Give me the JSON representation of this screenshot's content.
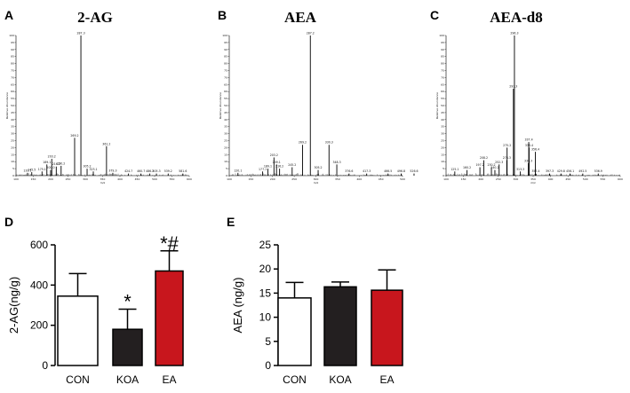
{
  "panels": {
    "A": "A",
    "B": "B",
    "C": "C",
    "D": "D",
    "E": "E"
  },
  "spectra": [
    {
      "letter": "A",
      "title": "2-AG",
      "ylabel": "Relative Abundance",
      "xlabel": "m/z",
      "yticks": [
        "0",
        "5",
        "10",
        "15",
        "20",
        "25",
        "30",
        "35",
        "40",
        "45",
        "50",
        "55",
        "60",
        "65",
        "70",
        "75",
        "80",
        "85",
        "90",
        "95",
        "100"
      ],
      "xticks": [
        "100",
        "150",
        "200",
        "250",
        "300",
        "350",
        "400",
        "450",
        "500",
        "550",
        "600"
      ],
      "xlim": [
        100,
        600
      ],
      "ylim": [
        0,
        100
      ],
      "peaks": [
        {
          "mz": 133.1,
          "rel": 2,
          "label": "133.1"
        },
        {
          "mz": 145.5,
          "rel": 2.5,
          "label": "145.5"
        },
        {
          "mz": 175.1,
          "rel": 3,
          "label": "175.1"
        },
        {
          "mz": 189.1,
          "rel": 8,
          "label": "189.1"
        },
        {
          "mz": 200,
          "rel": 4,
          "label": "200.0"
        },
        {
          "mz": 203.2,
          "rel": 12,
          "label": "203.2"
        },
        {
          "mz": 216.2,
          "rel": 6.5,
          "label": "216.2"
        },
        {
          "mz": 230.2,
          "rel": 7,
          "label": "230.2"
        },
        {
          "mz": 269.2,
          "rel": 27,
          "label": "269.2"
        },
        {
          "mz": 287.3,
          "rel": 100,
          "label": "287.3"
        },
        {
          "mz": 305.2,
          "rel": 5,
          "label": "305.2"
        },
        {
          "mz": 323.1,
          "rel": 3,
          "label": "323.1"
        },
        {
          "mz": 361.2,
          "rel": 21,
          "label": "361.2"
        },
        {
          "mz": 379.3,
          "rel": 2,
          "label": "379.3"
        },
        {
          "mz": 424.7,
          "rel": 1.5,
          "label": "424.7"
        },
        {
          "mz": 460.7,
          "rel": 1.5,
          "label": "460.7"
        },
        {
          "mz": 486.2,
          "rel": 1.5,
          "label": "486.2"
        },
        {
          "mz": 505.3,
          "rel": 1.5,
          "label": "505.3"
        },
        {
          "mz": 539.2,
          "rel": 1.5,
          "label": "539.2"
        },
        {
          "mz": 581.6,
          "rel": 1.5,
          "label": "581.6"
        }
      ]
    },
    {
      "letter": "B",
      "title": "AEA",
      "ylabel": "Relative Abundance",
      "xlabel": "m/z",
      "yticks": [
        "0",
        "5",
        "10",
        "15",
        "20",
        "25",
        "30",
        "35",
        "40",
        "45",
        "50",
        "55",
        "60",
        "65",
        "70",
        "75",
        "80",
        "85",
        "90",
        "95",
        "100"
      ],
      "xticks": [
        "100",
        "150",
        "200",
        "250",
        "300",
        "350",
        "400",
        "450",
        "500"
      ],
      "xlim": [
        100,
        500
      ],
      "ylim": [
        0,
        100
      ],
      "peaks": [
        {
          "mz": 120.1,
          "rel": 2,
          "label": "120.1"
        },
        {
          "mz": 177.1,
          "rel": 3,
          "label": "177.1"
        },
        {
          "mz": 189.1,
          "rel": 5,
          "label": "189.1"
        },
        {
          "mz": 203.2,
          "rel": 13,
          "label": "203.2"
        },
        {
          "mz": 209.1,
          "rel": 8,
          "label": "209.1"
        },
        {
          "mz": 216.2,
          "rel": 5,
          "label": "216.2"
        },
        {
          "mz": 245.2,
          "rel": 6,
          "label": "245.2"
        },
        {
          "mz": 269.2,
          "rel": 22,
          "label": "269.2"
        },
        {
          "mz": 287.2,
          "rel": 100,
          "label": "287.2"
        },
        {
          "mz": 305.2,
          "rel": 4,
          "label": "305.2"
        },
        {
          "mz": 330.3,
          "rel": 22,
          "label": "330.3"
        },
        {
          "mz": 348.3,
          "rel": 8,
          "label": "348.3"
        },
        {
          "mz": 376.6,
          "rel": 1.5,
          "label": "376.6"
        },
        {
          "mz": 417.3,
          "rel": 1.5,
          "label": "417.3"
        },
        {
          "mz": 466.5,
          "rel": 1.5,
          "label": "466.5"
        },
        {
          "mz": 496.8,
          "rel": 1.5,
          "label": "496.8"
        },
        {
          "mz": 526.6,
          "rel": 1.5,
          "label": "526.6"
        }
      ]
    },
    {
      "letter": "C",
      "title": "AEA-d8",
      "ylabel": "Relative Abundance",
      "xlabel": "m/z",
      "yticks": [
        "0",
        "5",
        "10",
        "15",
        "20",
        "25",
        "30",
        "35",
        "40",
        "45",
        "50",
        "55",
        "60",
        "65",
        "70",
        "75",
        "80",
        "85",
        "90",
        "95",
        "100"
      ],
      "xticks": [
        "100",
        "150",
        "200",
        "250",
        "300",
        "350",
        "400",
        "450",
        "500",
        "550",
        "600"
      ],
      "xlim": [
        100,
        600
      ],
      "ylim": [
        0,
        100
      ],
      "peaks": [
        {
          "mz": 125.1,
          "rel": 3,
          "label": "125.1"
        },
        {
          "mz": 160.2,
          "rel": 4,
          "label": "160.2"
        },
        {
          "mz": 197.2,
          "rel": 6,
          "label": "197.2"
        },
        {
          "mz": 208.2,
          "rel": 11,
          "label": "208.2"
        },
        {
          "mz": 230.2,
          "rel": 6,
          "label": "230.2"
        },
        {
          "mz": 240.2,
          "rel": 4,
          "label": "240.2"
        },
        {
          "mz": 252.3,
          "rel": 8,
          "label": "252.3"
        },
        {
          "mz": 274.3,
          "rel": 11,
          "label": "274.3"
        },
        {
          "mz": 275.2,
          "rel": 20,
          "label": "275.2"
        },
        {
          "mz": 293.3,
          "rel": 62,
          "label": "293.3"
        },
        {
          "mz": 296.3,
          "rel": 100,
          "label": "296.3"
        },
        {
          "mz": 313.3,
          "rel": 3,
          "label": "313.3"
        },
        {
          "mz": 336.3,
          "rel": 9,
          "label": "336.3"
        },
        {
          "mz": 337.4,
          "rel": 24,
          "label": "337.4"
        },
        {
          "mz": 338.4,
          "rel": 20,
          "label": "338.4"
        },
        {
          "mz": 356.4,
          "rel": 17,
          "label": "356.4"
        },
        {
          "mz": 357.4,
          "rel": 1.5,
          "label": "357.4"
        },
        {
          "mz": 397.3,
          "rel": 1.5,
          "label": "397.3"
        },
        {
          "mz": 429.8,
          "rel": 1.5,
          "label": "429.8"
        },
        {
          "mz": 456.1,
          "rel": 1.5,
          "label": "456.1"
        },
        {
          "mz": 492.5,
          "rel": 1.5,
          "label": "492.5"
        },
        {
          "mz": 536.9,
          "rel": 1.5,
          "label": "536.9"
        }
      ]
    }
  ],
  "chart_data": [
    {
      "type": "bar",
      "panel": "D",
      "categories": [
        "CON",
        "KOA",
        "EA"
      ],
      "values": [
        345,
        180,
        470
      ],
      "errors": [
        112,
        100,
        100
      ],
      "colors": [
        "#ffffff",
        "#231f20",
        "#c8161d"
      ],
      "annotations": [
        "",
        "*",
        "*#"
      ],
      "title": "",
      "xlabel": "",
      "ylabel": "2-AG(ng/g)",
      "ylim": [
        0,
        600
      ],
      "yticks": [
        "0",
        "200",
        "400",
        "600"
      ],
      "tick_values": [
        0,
        200,
        400,
        600
      ]
    },
    {
      "type": "bar",
      "panel": "E",
      "categories": [
        "CON",
        "KOA",
        "EA"
      ],
      "values": [
        14,
        16.3,
        15.6
      ],
      "errors": [
        3.2,
        1,
        4.2
      ],
      "colors": [
        "#ffffff",
        "#231f20",
        "#c8161d"
      ],
      "annotations": [
        "",
        "",
        ""
      ],
      "title": "",
      "xlabel": "",
      "ylabel": "AEA (ng/g)",
      "ylim": [
        0,
        25
      ],
      "yticks": [
        "0",
        "5",
        "10",
        "15",
        "20",
        "25"
      ],
      "tick_values": [
        0,
        5,
        10,
        15,
        20,
        25
      ]
    }
  ]
}
